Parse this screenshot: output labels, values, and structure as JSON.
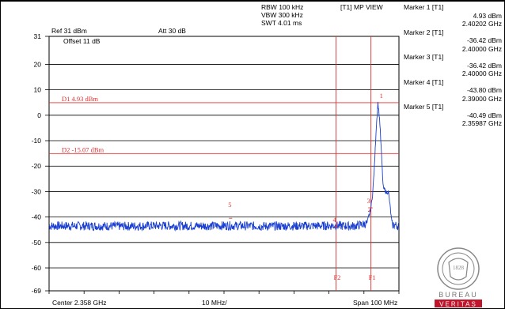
{
  "chart_data": {
    "type": "line",
    "header": {
      "rbw": "RBW 100 kHz",
      "vbw": "VBW 300 kHz",
      "swt": "SWT 4.01 ms",
      "trace_mode": "[T1] MP VIEW",
      "ref_level": "Ref 31 dBm",
      "attenuation": "Att 30 dB",
      "offset": "Offset 11 dB"
    },
    "y_ticks": [
      "31",
      "20",
      "10",
      "0",
      "-10",
      "-20",
      "-30",
      "-40",
      "-50",
      "-60",
      "-69"
    ],
    "ylim": [
      -69,
      31
    ],
    "xlim": [
      2.308,
      2.408
    ],
    "x_unit": "GHz",
    "footer": {
      "center": "Center 2.358 GHz",
      "div": "10 MHz/",
      "span": "Span 100 MHz"
    },
    "display_lines": [
      {
        "label": "D1 4.93 dBm",
        "level": 4.93,
        "color": "#e03030"
      },
      {
        "label": "D2 -15.07 dBm",
        "level": -15.07,
        "color": "#e03030"
      }
    ],
    "frequency_lines": [
      {
        "label": "F2",
        "freq": 2.39,
        "color": "#e03030"
      },
      {
        "label": "F1",
        "freq": 2.4,
        "color": "#e03030"
      }
    ],
    "markers": [
      {
        "id": "1",
        "title": "Marker 1 [T1]",
        "level_text": "4.93 dBm",
        "freq_text": "2.40202 GHz",
        "freq": 2.40202,
        "level": 4.93
      },
      {
        "id": "2",
        "title": "Marker 2 [T1]",
        "level_text": "-36.42 dBm",
        "freq_text": "2.40000 GHz",
        "freq": 2.4,
        "level": -36.42
      },
      {
        "id": "3",
        "title": "Marker 3 [T1]",
        "level_text": "-36.42 dBm",
        "freq_text": "2.40000 GHz",
        "freq": 2.4,
        "level": -36.42
      },
      {
        "id": "4",
        "title": "Marker 4 [T1]",
        "level_text": "-43.80 dBm",
        "freq_text": "2.39000 GHz",
        "freq": 2.39,
        "level": -43.8
      },
      {
        "id": "5",
        "title": "Marker 5 [T1]",
        "level_text": "-40.49 dBm",
        "freq_text": "2.35987 GHz",
        "freq": 2.35987,
        "level": -40.49
      }
    ],
    "trace": {
      "name": "T1",
      "color": "#1a3fd0",
      "noise_floor": -43.5,
      "points": [
        [
          2.308,
          -43.5
        ],
        [
          2.32,
          -43.5
        ],
        [
          2.33,
          -43.6
        ],
        [
          2.34,
          -43.4
        ],
        [
          2.35,
          -43.5
        ],
        [
          2.36,
          -43.4
        ],
        [
          2.37,
          -43.6
        ],
        [
          2.38,
          -43.5
        ],
        [
          2.39,
          -43.4
        ],
        [
          2.395,
          -43.6
        ],
        [
          2.399,
          -42.5
        ],
        [
          2.4,
          -36.4
        ],
        [
          2.4005,
          -30.5
        ],
        [
          2.401,
          -20.0
        ],
        [
          2.4015,
          -5.0
        ],
        [
          2.402,
          4.93
        ],
        [
          2.4025,
          -2.0
        ],
        [
          2.403,
          -15.0
        ],
        [
          2.4035,
          -28.5
        ],
        [
          2.4045,
          -30.5
        ],
        [
          2.405,
          -30.0
        ],
        [
          2.4055,
          -36.0
        ],
        [
          2.406,
          -43.0
        ],
        [
          2.408,
          -43.5
        ]
      ]
    }
  },
  "logo": {
    "ring_text": "BUREAU VERITAS",
    "year": "1828",
    "word1": "BUREAU",
    "word2": "VERITAS"
  }
}
